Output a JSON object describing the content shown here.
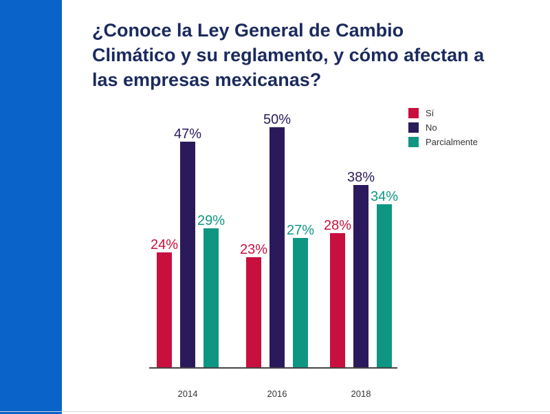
{
  "colors": {
    "sidebar": "#0a63c9",
    "title": "#1b2a5e",
    "si": "#c8103e",
    "no": "#2b1a5b",
    "parcialmente": "#0f9683",
    "axis": "#444444"
  },
  "title_lines": [
    "¿Conoce la Ley General de Cambio",
    "Climático y su reglamento, y cómo afectan a",
    "las empresas mexicanas?"
  ],
  "chart_data": {
    "type": "bar",
    "title": "¿Conoce la Ley General de Cambio Climático y su reglamento, y cómo afectan a las empresas mexicanas?",
    "categories": [
      "2014",
      "2016",
      "2018"
    ],
    "series": [
      {
        "name": "Sí",
        "values": [
          24,
          23,
          28
        ],
        "labels": [
          "24%",
          "23%",
          "28%"
        ]
      },
      {
        "name": "No",
        "values": [
          47,
          50,
          38
        ],
        "labels": [
          "47%",
          "50%",
          "38%"
        ]
      },
      {
        "name": "Parcialmente",
        "values": [
          29,
          27,
          34
        ],
        "labels": [
          "29%",
          "27%",
          "34%"
        ]
      }
    ],
    "xlabel": "",
    "ylabel": "",
    "ylim": [
      0,
      50
    ],
    "grid": false,
    "legend": "top-right"
  }
}
